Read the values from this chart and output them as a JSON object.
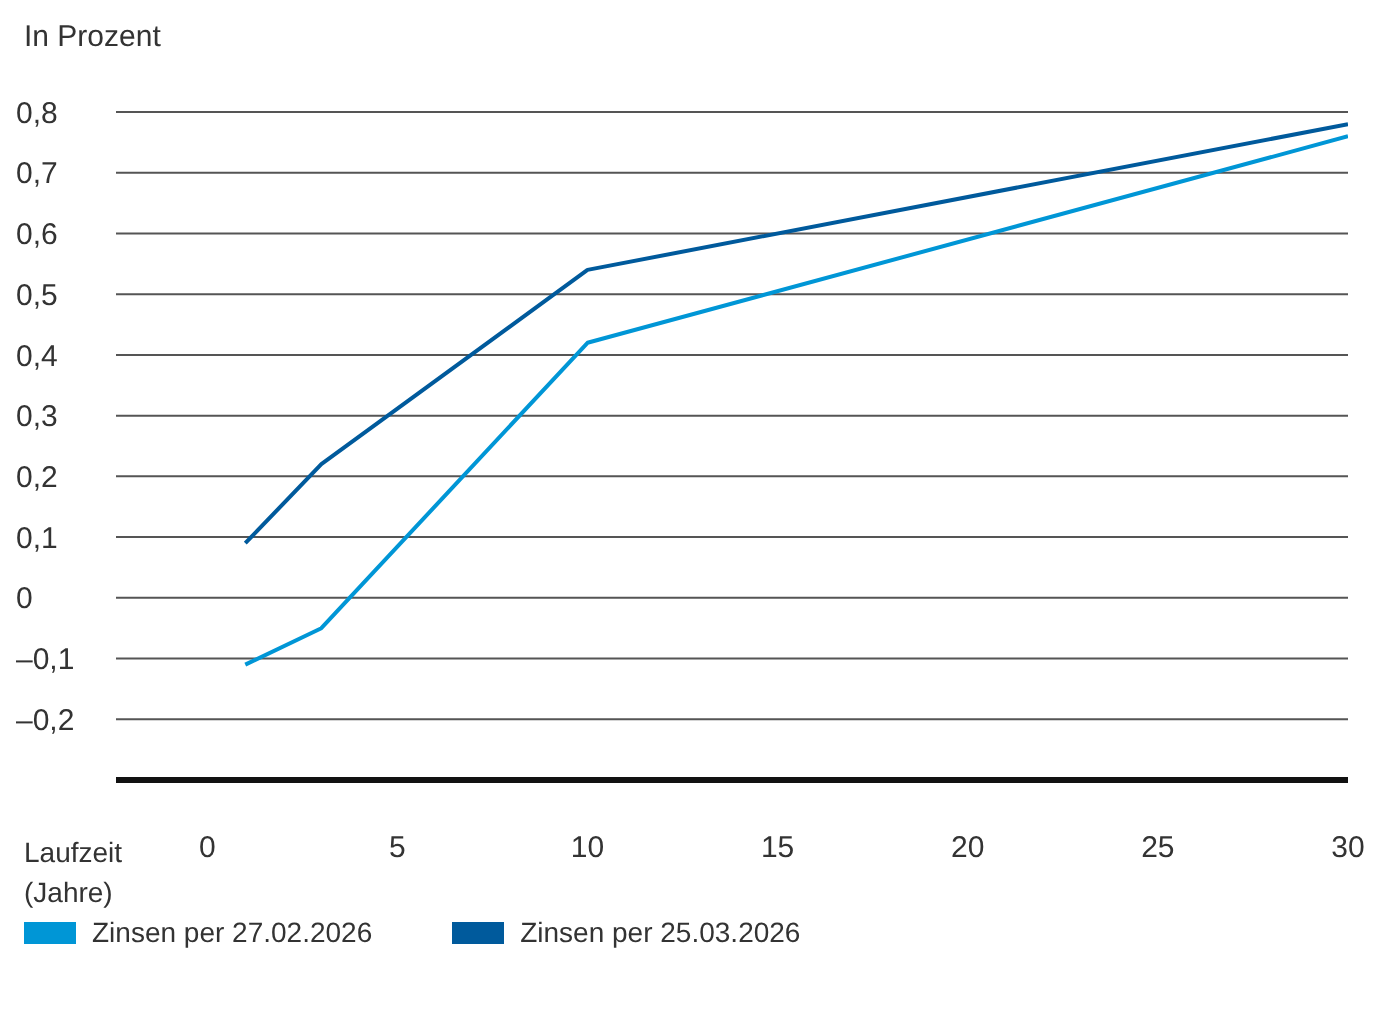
{
  "chart_data": {
    "type": "line",
    "ylabel": "In Prozent",
    "xlabel": "Laufzeit (Jahre)",
    "xlim": [
      -2.4,
      30
    ],
    "xticks": [
      0,
      5,
      10,
      15,
      20,
      25,
      30
    ],
    "ylim": [
      -0.3,
      0.8
    ],
    "yticks": [
      {
        "value": -0.2,
        "label": "–0,2"
      },
      {
        "value": -0.1,
        "label": "–0,1"
      },
      {
        "value": 0,
        "label": "0"
      },
      {
        "value": 0.1,
        "label": "0,1"
      },
      {
        "value": 0.2,
        "label": "0,2"
      },
      {
        "value": 0.3,
        "label": "0,3"
      },
      {
        "value": 0.4,
        "label": "0,4"
      },
      {
        "value": 0.5,
        "label": "0,5"
      },
      {
        "value": 0.6,
        "label": "0,6"
      },
      {
        "value": 0.7,
        "label": "0,7"
      },
      {
        "value": 0.8,
        "label": "0,8"
      }
    ],
    "grid": "y",
    "legend": "bottom left",
    "marker": "none",
    "line_style": "solid",
    "series": [
      {
        "name": "Zinsen per 27.02.2026",
        "color": "#0096d6",
        "x": [
          1,
          3,
          10,
          30
        ],
        "values": [
          -0.11,
          -0.05,
          0.42,
          0.76
        ]
      },
      {
        "name": "Zinsen per 25.03.2026",
        "color": "#005a9c",
        "x": [
          1,
          3,
          10,
          30
        ],
        "values": [
          0.09,
          0.22,
          0.54,
          0.78
        ]
      }
    ]
  }
}
